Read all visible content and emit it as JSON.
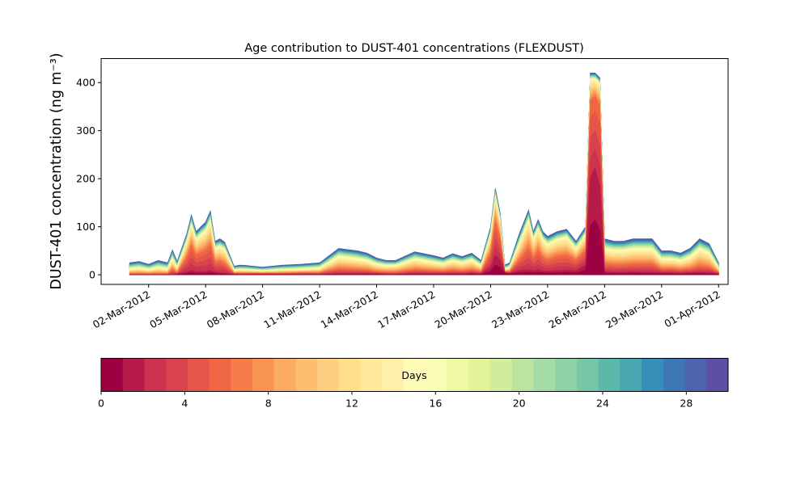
{
  "chart_data": {
    "type": "area",
    "title": "Age contribution to DUST-401 concentrations (FLEXDUST)",
    "ylabel": "DUST-401 concentration (ng m⁻³)",
    "xlabel": "",
    "ylim": [
      -20,
      450
    ],
    "yticks": [
      0,
      100,
      200,
      300,
      400
    ],
    "xlim": [
      "2012-02-28T12:00",
      "2012-04-01T12:00"
    ],
    "xticks": [
      "2012-03-02",
      "2012-03-05",
      "2012-03-08",
      "2012-03-11",
      "2012-03-14",
      "2012-03-17",
      "2012-03-20",
      "2012-03-23",
      "2012-03-26",
      "2012-03-29",
      "2012-04-01"
    ],
    "xtick_labels": [
      "02-Mar-2012",
      "05-Mar-2012",
      "08-Mar-2012",
      "11-Mar-2012",
      "14-Mar-2012",
      "17-Mar-2012",
      "20-Mar-2012",
      "23-Mar-2012",
      "26-Mar-2012",
      "29-Mar-2012",
      "01-Apr-2012"
    ],
    "grid": false,
    "total_series": {
      "name": "",
      "x": [
        "2012-03-01T00:00",
        "2012-03-01T12:00",
        "2012-03-02T00:00",
        "2012-03-02T12:00",
        "2012-03-03T00:00",
        "2012-03-03T06:00",
        "2012-03-03T12:00",
        "2012-03-04T00:00",
        "2012-03-04T06:00",
        "2012-03-04T12:00",
        "2012-03-04T18:00",
        "2012-03-05T00:00",
        "2012-03-05T06:00",
        "2012-03-05T12:00",
        "2012-03-05T18:00",
        "2012-03-06T00:00",
        "2012-03-06T12:00",
        "2012-03-06T18:00",
        "2012-03-07T00:00",
        "2012-03-07T12:00",
        "2012-03-08T00:00",
        "2012-03-08T12:00",
        "2012-03-09T00:00",
        "2012-03-10T00:00",
        "2012-03-11T00:00",
        "2012-03-12T00:00",
        "2012-03-13T00:00",
        "2012-03-13T12:00",
        "2012-03-14T00:00",
        "2012-03-14T12:00",
        "2012-03-15T00:00",
        "2012-03-16T00:00",
        "2012-03-17T00:00",
        "2012-03-17T12:00",
        "2012-03-18T00:00",
        "2012-03-18T12:00",
        "2012-03-19T00:00",
        "2012-03-19T12:00",
        "2012-03-20T00:00",
        "2012-03-20T06:00",
        "2012-03-20T12:00",
        "2012-03-20T18:00",
        "2012-03-21T00:00",
        "2012-03-21T12:00",
        "2012-03-22T00:00",
        "2012-03-22T06:00",
        "2012-03-22T12:00",
        "2012-03-22T18:00",
        "2012-03-23T00:00",
        "2012-03-23T12:00",
        "2012-03-24T00:00",
        "2012-03-24T12:00",
        "2012-03-25T00:00",
        "2012-03-25T06:00",
        "2012-03-25T12:00",
        "2012-03-25T18:00",
        "2012-03-26T00:00",
        "2012-03-26T12:00",
        "2012-03-27T00:00",
        "2012-03-27T12:00",
        "2012-03-28T00:00",
        "2012-03-28T12:00",
        "2012-03-29T00:00",
        "2012-03-29T12:00",
        "2012-03-30T00:00",
        "2012-03-30T12:00",
        "2012-03-31T00:00",
        "2012-03-31T12:00",
        "2012-04-01T00:00"
      ],
      "values": [
        25,
        28,
        22,
        30,
        25,
        52,
        28,
        85,
        125,
        90,
        100,
        110,
        133,
        70,
        75,
        68,
        18,
        20,
        20,
        18,
        16,
        18,
        20,
        22,
        25,
        55,
        50,
        45,
        35,
        30,
        30,
        48,
        40,
        35,
        44,
        38,
        45,
        30,
        100,
        180,
        130,
        20,
        25,
        85,
        135,
        90,
        115,
        90,
        80,
        90,
        95,
        70,
        100,
        420,
        420,
        410,
        75,
        70,
        70,
        75,
        75,
        75,
        50,
        50,
        45,
        55,
        75,
        65,
        25
      ]
    },
    "representative_layers": [
      {
        "days": 2,
        "values": [
          0,
          0,
          0,
          0,
          0,
          0,
          2,
          5,
          8,
          6,
          6,
          6,
          8,
          5,
          4,
          3,
          1,
          1,
          1,
          1,
          1,
          1,
          1,
          1,
          1,
          2,
          2,
          2,
          2,
          1,
          1,
          2,
          2,
          2,
          2,
          2,
          3,
          2,
          15,
          40,
          30,
          5,
          3,
          8,
          10,
          8,
          10,
          8,
          7,
          8,
          9,
          8,
          20,
          200,
          220,
          180,
          6,
          5,
          5,
          6,
          5,
          5,
          4,
          4,
          3,
          4,
          5,
          4,
          2
        ]
      },
      {
        "days": 6,
        "values": [
          2,
          2,
          2,
          2,
          2,
          10,
          4,
          35,
          60,
          40,
          45,
          50,
          60,
          25,
          28,
          22,
          3,
          3,
          3,
          3,
          3,
          3,
          3,
          4,
          4,
          12,
          10,
          9,
          6,
          5,
          5,
          10,
          8,
          7,
          9,
          7,
          10,
          6,
          45,
          110,
          75,
          6,
          6,
          30,
          55,
          35,
          50,
          35,
          30,
          38,
          40,
          30,
          50,
          360,
          370,
          350,
          22,
          20,
          20,
          22,
          22,
          22,
          12,
          12,
          10,
          12,
          18,
          15,
          5
        ]
      },
      {
        "days": 14,
        "values": [
          10,
          12,
          9,
          13,
          10,
          30,
          13,
          65,
          100,
          70,
          80,
          88,
          108,
          52,
          55,
          50,
          8,
          9,
          9,
          8,
          7,
          8,
          9,
          10,
          12,
          35,
          30,
          27,
          20,
          17,
          17,
          30,
          24,
          21,
          27,
          23,
          28,
          17,
          80,
          160,
          110,
          10,
          14,
          60,
          110,
          70,
          92,
          70,
          60,
          70,
          75,
          52,
          80,
          405,
          405,
          395,
          50,
          47,
          47,
          50,
          50,
          50,
          30,
          30,
          27,
          34,
          50,
          42,
          12
        ]
      }
    ]
  },
  "colorbar": {
    "label": "Days",
    "ticks": [
      0,
      4,
      8,
      12,
      16,
      20,
      24,
      28
    ],
    "range": [
      0,
      30
    ],
    "colors": [
      "#9e0142",
      "#b51a49",
      "#cc3350",
      "#d8434e",
      "#e4554a",
      "#ef6645",
      "#f67c4a",
      "#f99455",
      "#fcab62",
      "#fdbe6f",
      "#fdcf80",
      "#fee08b",
      "#fee99a",
      "#fff1a9",
      "#fffbb8",
      "#f8fcb4",
      "#eef8a5",
      "#e2f398",
      "#d1ec9c",
      "#bce4a0",
      "#a5dba4",
      "#8ed1a4",
      "#75c7a5",
      "#5cb8a8",
      "#48a6b1",
      "#368eb9",
      "#3e78b4",
      "#4d64ad",
      "#5e4fa2"
    ]
  }
}
